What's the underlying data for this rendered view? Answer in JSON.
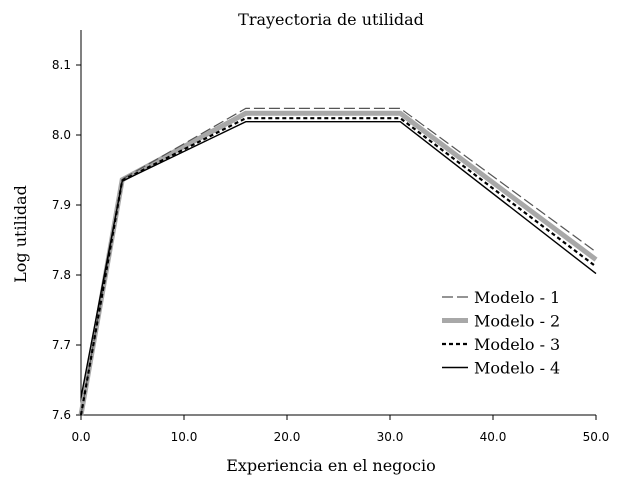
{
  "chart_data": {
    "type": "line",
    "title": "Trayectoria de utilidad",
    "xlabel": "Experiencia en el negocio",
    "ylabel": "Log utilidad",
    "xlim": [
      0,
      50
    ],
    "ylim": [
      7.6,
      8.15
    ],
    "xticks": [
      0,
      10,
      20,
      30,
      40,
      50
    ],
    "xtick_labels": [
      "0.0",
      "10.0",
      "20.0",
      "30.0",
      "40.0",
      "50.0"
    ],
    "yticks": [
      7.6,
      7.7,
      7.8,
      7.9,
      8.0,
      8.1
    ],
    "ytick_labels": [
      "7.6",
      "7.7",
      "7.8",
      "7.9",
      "8.0",
      "8.1"
    ],
    "grid": false,
    "legend_position": "right",
    "series": [
      {
        "name": "Modelo - 1",
        "style": "long-dash",
        "color": "#555555",
        "x": [
          0,
          4,
          16,
          31,
          50
        ],
        "y": [
          7.6,
          7.937,
          8.038,
          8.038,
          7.833
        ]
      },
      {
        "name": "Modelo - 2",
        "style": "thick",
        "color": "#a8a8a8",
        "x": [
          0,
          4,
          16,
          31,
          50
        ],
        "y": [
          7.6,
          7.936,
          8.031,
          8.031,
          7.822
        ]
      },
      {
        "name": "Modelo - 3",
        "style": "dotted",
        "color": "#000000",
        "x": [
          0,
          4,
          16,
          31,
          50
        ],
        "y": [
          7.6,
          7.935,
          8.024,
          8.024,
          7.812
        ]
      },
      {
        "name": "Modelo - 4",
        "style": "solid",
        "color": "#000000",
        "x": [
          0,
          4,
          16,
          31,
          50
        ],
        "y": [
          7.625,
          7.934,
          8.019,
          8.019,
          7.802
        ]
      }
    ]
  }
}
